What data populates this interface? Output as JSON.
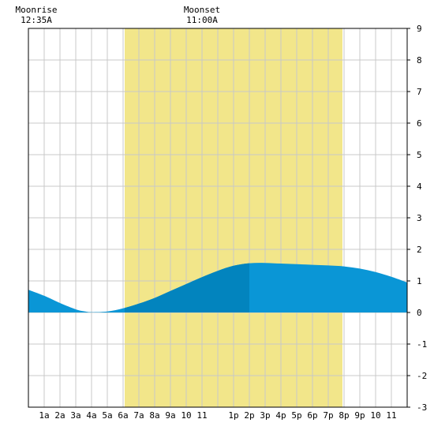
{
  "chart_data": {
    "type": "area",
    "title": "",
    "xlabel": "",
    "ylabel": "",
    "x_range_hours": [
      0,
      24
    ],
    "ylim": [
      -3,
      9
    ],
    "grid": true,
    "x_ticks": [
      {
        "hour": 1,
        "label": "1a"
      },
      {
        "hour": 2,
        "label": "2a"
      },
      {
        "hour": 3,
        "label": "3a"
      },
      {
        "hour": 4,
        "label": "4a"
      },
      {
        "hour": 5,
        "label": "5a"
      },
      {
        "hour": 6,
        "label": "6a"
      },
      {
        "hour": 7,
        "label": "7a"
      },
      {
        "hour": 8,
        "label": "8a"
      },
      {
        "hour": 9,
        "label": "9a"
      },
      {
        "hour": 10,
        "label": "10"
      },
      {
        "hour": 11,
        "label": "11"
      },
      {
        "hour": 13,
        "label": "1p"
      },
      {
        "hour": 14,
        "label": "2p"
      },
      {
        "hour": 15,
        "label": "3p"
      },
      {
        "hour": 16,
        "label": "4p"
      },
      {
        "hour": 17,
        "label": "5p"
      },
      {
        "hour": 18,
        "label": "6p"
      },
      {
        "hour": 19,
        "label": "7p"
      },
      {
        "hour": 20,
        "label": "8p"
      },
      {
        "hour": 21,
        "label": "9p"
      },
      {
        "hour": 22,
        "label": "10"
      },
      {
        "hour": 23,
        "label": "11"
      }
    ],
    "y_ticks": [
      -3,
      -2,
      -1,
      0,
      1,
      2,
      3,
      4,
      5,
      6,
      7,
      8,
      9
    ],
    "series": [
      {
        "hours": [
          0,
          1,
          2,
          3,
          3.5,
          4,
          5,
          6,
          7,
          8,
          9,
          10,
          11,
          12,
          13,
          14,
          15,
          16,
          17,
          18,
          19,
          20,
          21,
          22,
          23,
          24
        ],
        "values": [
          0.72,
          0.53,
          0.3,
          0.1,
          0.04,
          0.01,
          0.03,
          0.13,
          0.28,
          0.46,
          0.68,
          0.9,
          1.12,
          1.32,
          1.48,
          1.56,
          1.57,
          1.55,
          1.53,
          1.51,
          1.49,
          1.46,
          1.39,
          1.28,
          1.13,
          0.95
        ]
      }
    ],
    "daylight": {
      "start_hour": 6.1,
      "end_hour": 19.9,
      "color": "#f2e68a"
    },
    "colors": {
      "tide": "#0a96d6",
      "tide_daylight": "#0284be",
      "grid": "#c8c8c8",
      "axis": "#000000"
    },
    "highlight_tide_hours": [
      6.1,
      14
    ],
    "annotations": [
      {
        "key": "moonrise",
        "hour": 0.5,
        "line1": "Moonrise",
        "line2": "12:35A"
      },
      {
        "key": "moonset",
        "hour": 11,
        "line1": "Moonset",
        "line2": "11:00A"
      }
    ]
  }
}
